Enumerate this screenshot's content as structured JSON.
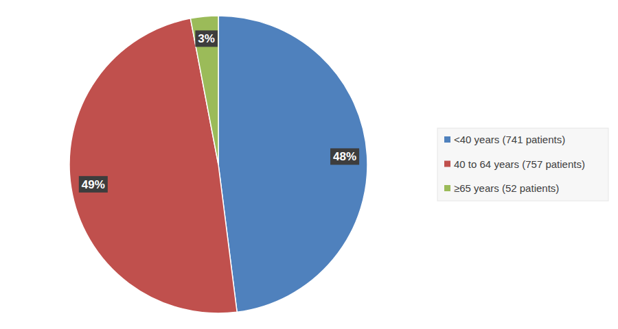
{
  "chart_data": {
    "type": "pie",
    "categories": [
      "<40 years (741 patients)",
      "40 to 64 years (757 patients)",
      "≥65 years (52 patients)"
    ],
    "values": [
      48,
      49,
      3
    ],
    "value_labels": [
      "48%",
      "49%",
      "3%"
    ],
    "colors": [
      "#4f81bd",
      "#c0504d",
      "#9bbb59"
    ],
    "data_labels": true,
    "legend": "right"
  }
}
